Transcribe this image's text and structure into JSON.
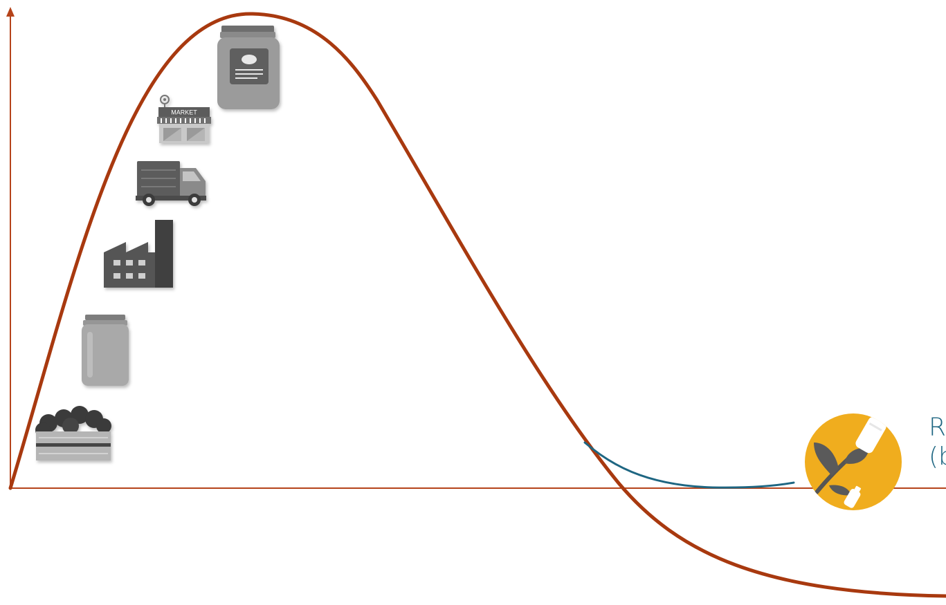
{
  "diagram": {
    "icons": {
      "crate": "fruit-crate-icon",
      "jar_empty": "empty-jar-icon",
      "factory": "factory-icon",
      "truck": "delivery-truck-icon",
      "market": "market-icon",
      "jar_labeled": "labeled-jar-icon",
      "recycle": "plant-bottle-recycle-icon"
    },
    "market_sign": "MARKET",
    "side_label": {
      "line1": "R",
      "line2": "(b"
    },
    "colors": {
      "axis": "#b5431a",
      "main_curve": "#a8390f",
      "recovery_curve": "#1e6682",
      "icon_gray": "#8a8a8a",
      "recycle_badge": "#f0ad1e"
    }
  }
}
